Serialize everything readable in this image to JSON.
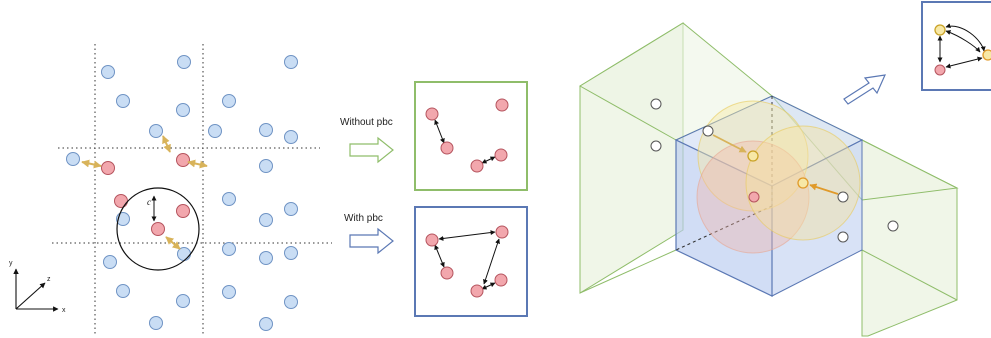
{
  "labels": {
    "without_pbc": "Without pbc",
    "with_pbc": "With pbc",
    "cutoff_symbol": "c",
    "axis_x": "x",
    "axis_y": "y",
    "axis_z": "z"
  },
  "colors": {
    "blue_atom_fill": "#c9ddf4",
    "blue_atom_stroke": "#6f93c4",
    "red_atom_fill": "#f2a7ad",
    "red_atom_stroke": "#b5545e",
    "gold_arrow": "#d8b35a",
    "yellow_atom_fill": "#f7e8a6",
    "yellow_atom_stroke": "#c9a227",
    "orange_arrow": "#e09a2a",
    "green_box_stroke": "#8fbd6a",
    "green_box_fill": "#e3efd5",
    "blue_box_stroke": "#5b78b4",
    "blue_box_fill": "#b8cbef"
  },
  "icons": [
    "hollow-arrow-right-icon",
    "hollow-arrow-diagonal-icon",
    "axis-triad-icon"
  ]
}
